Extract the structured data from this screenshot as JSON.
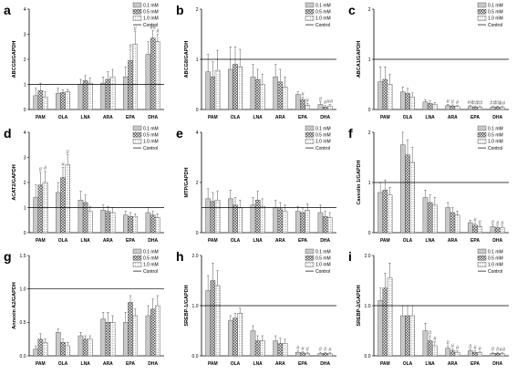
{
  "legend": [
    "0.1 mM",
    "0.5 mM",
    "1.0 mM",
    "Control"
  ],
  "categories": [
    "PAM",
    "OLA",
    "LNA",
    "ARA",
    "EPA",
    "DHA"
  ],
  "chart_data": [
    {
      "panel": "a",
      "type": "bar",
      "ylabel": "ABCG5/GAPDH",
      "ylim": [
        0,
        4
      ],
      "ticks": [
        "0",
        "1",
        "2",
        "3",
        "4"
      ],
      "ticks_num": [
        0,
        1,
        2,
        3,
        4
      ],
      "control": 1,
      "categories": [
        "PAM",
        "OLA",
        "LNA",
        "ARA",
        "EPA",
        "DHA"
      ],
      "series": [
        {
          "name": "0.1 mM",
          "values": [
            0.55,
            0.65,
            1.0,
            1.05,
            1.3,
            2.2
          ]
        },
        {
          "name": "0.5 mM",
          "values": [
            0.75,
            0.68,
            1.15,
            1.2,
            1.95,
            2.85
          ]
        },
        {
          "name": "1.0 mM",
          "values": [
            0.5,
            0.7,
            1.05,
            1.3,
            2.6,
            2.7
          ]
        }
      ],
      "errors": [
        [
          0.3,
          0.2,
          0.2,
          0.25,
          0.4,
          0.5
        ],
        [
          0.3,
          0.1,
          0.2,
          0.3,
          0.45,
          0.3
        ],
        [
          0.2,
          0.1,
          0.2,
          0.3,
          0.5,
          0.3
        ]
      ],
      "marks": [
        [
          [],
          [],
          [],
          [],
          [],
          []
        ],
        [
          [],
          [],
          [],
          [],
          [
            "#"
          ],
          [
            "##"
          ]
        ],
        [
          [],
          [],
          [],
          [],
          [
            "#"
          ],
          [
            "#"
          ]
        ]
      ]
    },
    {
      "panel": "b",
      "type": "bar",
      "ylabel": "ABCG8/GAPDH",
      "ylim": [
        0,
        2
      ],
      "ticks": [
        "0",
        "1",
        "2"
      ],
      "ticks_num": [
        0,
        1,
        2
      ],
      "control": 1,
      "categories": [
        "PAM",
        "OLA",
        "LNA",
        "ARA",
        "EPA",
        "DHA"
      ],
      "series": [
        {
          "name": "0.1 mM",
          "values": [
            0.75,
            0.8,
            0.65,
            0.65,
            0.3,
            0.1
          ]
        },
        {
          "name": "0.5 mM",
          "values": [
            0.65,
            0.9,
            0.6,
            0.55,
            0.2,
            0.05
          ]
        },
        {
          "name": "1.0 mM",
          "values": [
            0.78,
            0.85,
            0.5,
            0.45,
            0.08,
            0.07
          ]
        }
      ],
      "errors": [
        [
          0.35,
          0.45,
          0.25,
          0.25,
          0.05,
          0.05
        ],
        [
          0.3,
          0.35,
          0.2,
          0.25,
          0.05,
          0.03
        ],
        [
          0.4,
          0.35,
          0.2,
          0.2,
          0.04,
          0.03
        ]
      ],
      "marks": [
        [
          [],
          [],
          [],
          [],
          [],
          [
            "#"
          ]
        ],
        [
          [],
          [],
          [],
          [],
          [
            "#"
          ],
          [
            "#"
          ]
        ],
        [
          [],
          [],
          [],
          [],
          [
            "#"
          ],
          [
            "##"
          ]
        ]
      ]
    },
    {
      "panel": "c",
      "type": "bar",
      "ylabel": "ABCA1/GAPDH",
      "ylim": [
        0,
        2
      ],
      "ticks": [
        "0",
        "1",
        "2"
      ],
      "ticks_num": [
        0,
        1,
        2
      ],
      "control": 1,
      "categories": [
        "PAM",
        "OLA",
        "LNA",
        "ARA",
        "EPA",
        "DHA"
      ],
      "series": [
        {
          "name": "0.1 mM",
          "values": [
            0.55,
            0.35,
            0.15,
            0.08,
            0.06,
            0.05
          ]
        },
        {
          "name": "0.5 mM",
          "values": [
            0.6,
            0.32,
            0.12,
            0.07,
            0.05,
            0.05
          ]
        },
        {
          "name": "1.0 mM",
          "values": [
            0.5,
            0.25,
            0.1,
            0.06,
            0.05,
            0.04
          ]
        }
      ],
      "errors": [
        [
          0.3,
          0.1,
          0.05,
          0.02,
          0.02,
          0.02
        ],
        [
          0.25,
          0.1,
          0.05,
          0.02,
          0.02,
          0.02
        ],
        [
          0.2,
          0.08,
          0.04,
          0.02,
          0.02,
          0.02
        ]
      ],
      "marks": [
        [
          [],
          [],
          [],
          [
            "#"
          ],
          [
            "##"
          ],
          [
            "##"
          ]
        ],
        [
          [],
          [],
          [],
          [
            "#"
          ],
          [
            "##"
          ],
          [
            "##"
          ]
        ],
        [
          [],
          [],
          [],
          [
            "#"
          ],
          [
            "##"
          ],
          [
            "##"
          ]
        ]
      ]
    },
    {
      "panel": "d",
      "type": "bar",
      "ylabel": "ACAT2/GAPDH",
      "ylim": [
        0,
        4
      ],
      "ticks": [
        "0",
        "1",
        "2",
        "3",
        "4"
      ],
      "ticks_num": [
        0,
        1,
        2,
        3,
        4
      ],
      "control": 1,
      "categories": [
        "PAM",
        "OLA",
        "LNA",
        "ARA",
        "EPA",
        "DHA"
      ],
      "series": [
        {
          "name": "0.1 mM",
          "values": [
            1.4,
            1.6,
            1.3,
            0.9,
            0.7,
            0.8
          ]
        },
        {
          "name": "0.5 mM",
          "values": [
            1.9,
            2.2,
            1.2,
            0.85,
            0.65,
            0.7
          ]
        },
        {
          "name": "1.0 mM",
          "values": [
            2.0,
            2.7,
            0.85,
            0.8,
            0.65,
            0.6
          ]
        }
      ],
      "errors": [
        [
          0.5,
          0.4,
          0.35,
          0.2,
          0.15,
          0.2
        ],
        [
          0.5,
          0.4,
          0.3,
          0.2,
          0.15,
          0.15
        ],
        [
          0.45,
          0.4,
          0.2,
          0.2,
          0.1,
          0.15
        ]
      ],
      "marks": [
        [
          [],
          [],
          [],
          [],
          [],
          []
        ],
        [
          [
            "#"
          ],
          [
            "#"
          ],
          [],
          [],
          [],
          []
        ],
        [
          [
            "#"
          ],
          [
            "#"
          ],
          [],
          [],
          [],
          []
        ]
      ]
    },
    {
      "panel": "e",
      "type": "bar",
      "ylabel": "MTP/GAPDH",
      "ylim": [
        0,
        4
      ],
      "ticks": [
        "0",
        "2",
        "4"
      ],
      "ticks_num": [
        0,
        2,
        4
      ],
      "control": 1,
      "categories": [
        "PAM",
        "OLA",
        "LNA",
        "ARA",
        "EPA",
        "DHA"
      ],
      "series": [
        {
          "name": "0.1 mM",
          "values": [
            1.35,
            1.35,
            1.1,
            1.0,
            0.85,
            0.8
          ]
        },
        {
          "name": "0.5 mM",
          "values": [
            1.25,
            1.1,
            1.3,
            0.95,
            0.8,
            0.65
          ]
        },
        {
          "name": "1.0 mM",
          "values": [
            1.3,
            1.0,
            1.05,
            0.85,
            0.9,
            0.6
          ]
        }
      ],
      "errors": [
        [
          0.4,
          0.35,
          0.3,
          0.3,
          0.2,
          0.3
        ],
        [
          0.35,
          0.3,
          0.35,
          0.25,
          0.2,
          0.2
        ],
        [
          0.35,
          0.3,
          0.3,
          0.25,
          0.25,
          0.2
        ]
      ],
      "marks": [
        [
          [],
          [],
          [],
          [],
          [],
          []
        ],
        [
          [],
          [],
          [],
          [],
          [],
          []
        ],
        [
          [],
          [],
          [],
          [],
          [],
          []
        ]
      ]
    },
    {
      "panel": "f",
      "type": "bar",
      "ylabel": "Caveolin 1/GAPDH",
      "ylim": [
        0,
        2
      ],
      "ticks": [
        "0",
        "1",
        "2"
      ],
      "ticks_num": [
        0,
        1,
        2
      ],
      "control": 1,
      "categories": [
        "PAM",
        "OLA",
        "LNA",
        "ARA",
        "EPA",
        "DHA"
      ],
      "series": [
        {
          "name": "0.1 mM",
          "values": [
            0.8,
            1.75,
            0.7,
            0.5,
            0.2,
            0.12
          ]
        },
        {
          "name": "0.5 mM",
          "values": [
            0.85,
            1.55,
            0.6,
            0.4,
            0.15,
            0.1
          ]
        },
        {
          "name": "1.0 mM",
          "values": [
            0.75,
            1.4,
            0.55,
            0.35,
            0.12,
            0.1
          ]
        }
      ],
      "errors": [
        [
          0.2,
          0.35,
          0.15,
          0.1,
          0.05,
          0.03
        ],
        [
          0.2,
          0.3,
          0.15,
          0.1,
          0.04,
          0.03
        ],
        [
          0.15,
          0.3,
          0.15,
          0.08,
          0.03,
          0.03
        ]
      ],
      "marks": [
        [
          [],
          [],
          [],
          [],
          [],
          [
            "#"
          ]
        ],
        [
          [],
          [],
          [],
          [],
          [
            "#"
          ],
          [
            "#"
          ]
        ],
        [
          [],
          [],
          [],
          [],
          [
            "#"
          ],
          [
            "#"
          ]
        ]
      ]
    },
    {
      "panel": "g",
      "type": "bar",
      "ylabel": "Annexin A2/GAPDH",
      "ylim": [
        0,
        1.5
      ],
      "ticks": [
        "0.0",
        "0.5",
        "1.0",
        "1.5"
      ],
      "ticks_num": [
        0,
        0.5,
        1,
        1.5
      ],
      "control": 1,
      "categories": [
        "PAM",
        "OLA",
        "LNA",
        "ARA",
        "EPA",
        "DHA"
      ],
      "series": [
        {
          "name": "0.1 mM",
          "values": [
            0.1,
            0.35,
            0.3,
            0.55,
            0.5,
            0.6
          ]
        },
        {
          "name": "0.5 mM",
          "values": [
            0.25,
            0.2,
            0.25,
            0.5,
            0.8,
            0.7
          ]
        },
        {
          "name": "1.0 mM",
          "values": [
            0.2,
            0.15,
            0.25,
            0.5,
            0.6,
            0.75
          ]
        }
      ],
      "errors": [
        [
          0.05,
          0.05,
          0.05,
          0.1,
          0.15,
          0.15
        ],
        [
          0.08,
          0.05,
          0.05,
          0.15,
          0.1,
          0.15
        ],
        [
          0.05,
          0.05,
          0.05,
          0.1,
          0.1,
          0.15
        ]
      ],
      "marks": [
        [
          [],
          [],
          [],
          [],
          [],
          []
        ],
        [
          [],
          [],
          [],
          [],
          [],
          []
        ],
        [
          [],
          [],
          [],
          [],
          [],
          []
        ]
      ]
    },
    {
      "panel": "h",
      "type": "bar",
      "ylabel": "SREBP-1/GAPDH",
      "ylim": [
        0,
        2
      ],
      "ticks": [
        "0.0",
        "1.0",
        "2.0"
      ],
      "ticks_num": [
        0,
        1,
        2
      ],
      "control": 1,
      "categories": [
        "PAM",
        "OLA",
        "LNA",
        "ARA",
        "EPA",
        "DHA"
      ],
      "series": [
        {
          "name": "0.1 mM",
          "values": [
            1.3,
            0.7,
            0.5,
            0.3,
            0.07,
            0.05
          ]
        },
        {
          "name": "0.5 mM",
          "values": [
            1.5,
            0.75,
            0.3,
            0.25,
            0.06,
            0.05
          ]
        },
        {
          "name": "1.0 mM",
          "values": [
            1.4,
            0.85,
            0.3,
            0.25,
            0.05,
            0.04
          ]
        }
      ],
      "errors": [
        [
          0.3,
          0.1,
          0.1,
          0.1,
          0.03,
          0.02
        ],
        [
          0.35,
          0.1,
          0.1,
          0.1,
          0.02,
          0.02
        ],
        [
          0.3,
          0.1,
          0.1,
          0.08,
          0.02,
          0.02
        ]
      ],
      "marks": [
        [
          [],
          [],
          [],
          [],
          [
            "#"
          ],
          [
            "#"
          ]
        ],
        [
          [],
          [],
          [],
          [],
          [
            "#"
          ],
          [
            "#"
          ]
        ],
        [
          [],
          [],
          [],
          [],
          [
            "#"
          ],
          [
            "#"
          ]
        ]
      ]
    },
    {
      "panel": "i",
      "type": "bar",
      "ylabel": "SREBP-2/GAPDH",
      "ylim": [
        0,
        2
      ],
      "ticks": [
        "0.0",
        "1.0",
        "2.0"
      ],
      "ticks_num": [
        0,
        1,
        2
      ],
      "control": 1,
      "categories": [
        "PAM",
        "OLA",
        "LNA",
        "ARA",
        "EPA",
        "DHA"
      ],
      "series": [
        {
          "name": "0.1 mM",
          "values": [
            1.1,
            0.8,
            0.5,
            0.15,
            0.1,
            0.05
          ]
        },
        {
          "name": "0.5 mM",
          "values": [
            1.35,
            0.8,
            0.3,
            0.1,
            0.07,
            0.05
          ]
        },
        {
          "name": "1.0 mM",
          "values": [
            1.55,
            0.8,
            0.2,
            0.07,
            0.06,
            0.04
          ]
        }
      ],
      "errors": [
        [
          0.25,
          0.2,
          0.15,
          0.05,
          0.03,
          0.02
        ],
        [
          0.3,
          0.2,
          0.1,
          0.04,
          0.03,
          0.02
        ],
        [
          0.3,
          0.2,
          0.08,
          0.03,
          0.02,
          0.02
        ]
      ],
      "marks": [
        [
          [],
          [],
          [],
          [
            "#"
          ],
          [
            "#"
          ],
          [
            "#"
          ]
        ],
        [
          [],
          [],
          [
            "#"
          ],
          [
            "#"
          ],
          [
            "#"
          ],
          [
            "#"
          ]
        ],
        [
          [],
          [],
          [
            "#"
          ],
          [
            "#"
          ],
          [
            "#"
          ],
          [
            "##"
          ]
        ]
      ]
    }
  ]
}
